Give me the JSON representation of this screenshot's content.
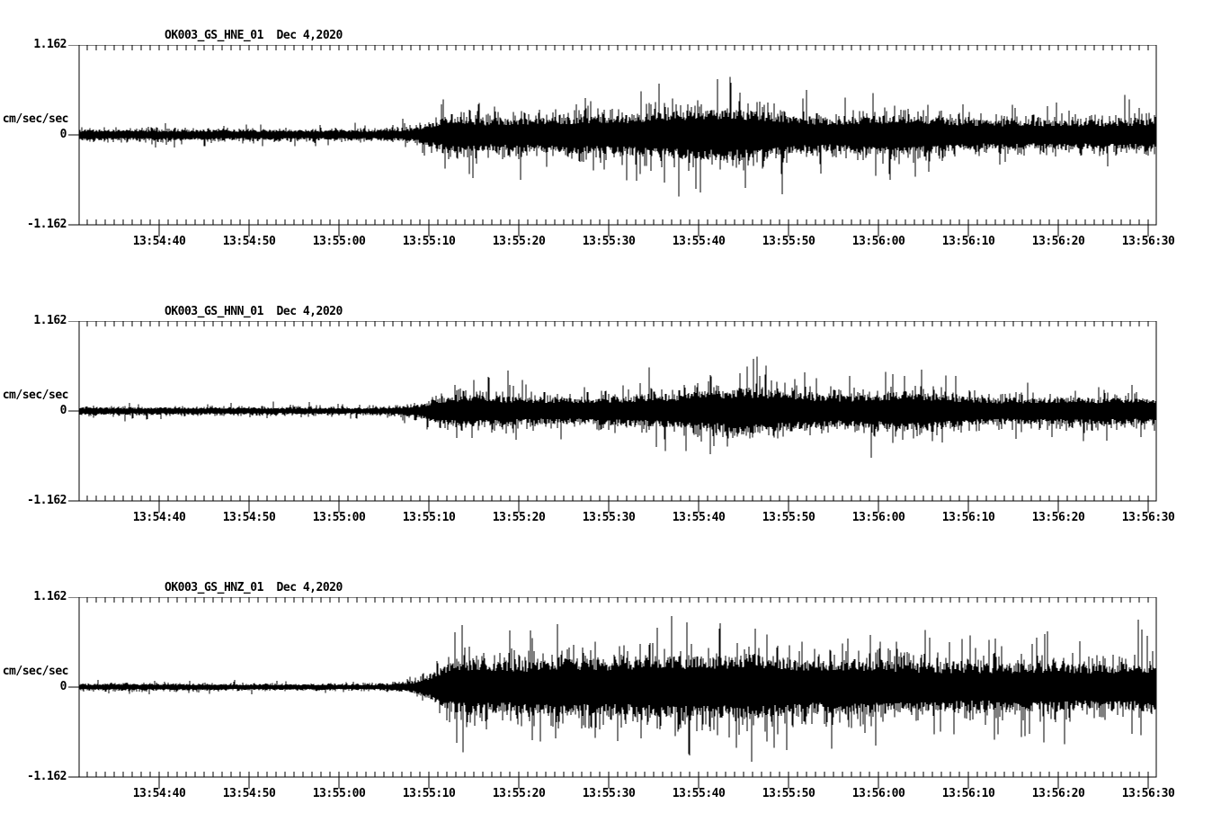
{
  "figure": {
    "background": "#ffffff",
    "trace_color": "#000000",
    "axis_color": "#000000"
  },
  "chart_data": {
    "type": "line",
    "subtype": "seismogram",
    "station": "OK003",
    "network": "GS",
    "date_label": "Dec 4,2020",
    "amplitude_units": "cm/sec/sec",
    "y_axis": {
      "label": "cm/sec/sec",
      "tick_labels": [
        "1.162",
        "0",
        "-1.162"
      ],
      "ylim": [
        -1.162,
        1.162
      ]
    },
    "x_axis": {
      "tick_labels": [
        "13:54:40",
        "13:54:50",
        "13:55:00",
        "13:55:10",
        "13:55:20",
        "13:55:30",
        "13:55:40",
        "13:55:50",
        "13:56:00",
        "13:56:10",
        "13:56:20",
        "13:56:30"
      ],
      "major_tick_interval_sec": 10,
      "minor_tick_interval_sec": 1,
      "window_duration_sec": 120,
      "first_major_tick_offset_sec": 8.9
    },
    "panels": [
      {
        "channel_id": "OK003_GS_HNE_01",
        "channel": "HNE",
        "title": "OK003_GS_HNE_01  Dec 4,2020",
        "envelope_cm_s2": [
          [
            0,
            0.1
          ],
          [
            20,
            0.095
          ],
          [
            32,
            0.09
          ],
          [
            36,
            0.11
          ],
          [
            38,
            0.16
          ],
          [
            40,
            0.28
          ],
          [
            42,
            0.34
          ],
          [
            45,
            0.3
          ],
          [
            50,
            0.32
          ],
          [
            55,
            0.34
          ],
          [
            60,
            0.36
          ],
          [
            64,
            0.42
          ],
          [
            68,
            0.46
          ],
          [
            72,
            0.48
          ],
          [
            76,
            0.44
          ],
          [
            80,
            0.34
          ],
          [
            84,
            0.3
          ],
          [
            88,
            0.36
          ],
          [
            92,
            0.38
          ],
          [
            96,
            0.32
          ],
          [
            100,
            0.28
          ],
          [
            105,
            0.27
          ],
          [
            110,
            0.28
          ],
          [
            115,
            0.27
          ],
          [
            120,
            0.3
          ]
        ]
      },
      {
        "channel_id": "OK003_GS_HNN_01",
        "channel": "HNN",
        "title": "OK003_GS_HNN_01  Dec 4,2020",
        "envelope_cm_s2": [
          [
            0,
            0.07
          ],
          [
            20,
            0.065
          ],
          [
            32,
            0.06
          ],
          [
            36,
            0.08
          ],
          [
            38,
            0.13
          ],
          [
            40,
            0.24
          ],
          [
            43,
            0.3
          ],
          [
            47,
            0.27
          ],
          [
            52,
            0.24
          ],
          [
            57,
            0.25
          ],
          [
            62,
            0.28
          ],
          [
            66,
            0.31
          ],
          [
            70,
            0.38
          ],
          [
            74,
            0.44
          ],
          [
            77,
            0.4
          ],
          [
            81,
            0.32
          ],
          [
            85,
            0.29
          ],
          [
            89,
            0.33
          ],
          [
            92,
            0.37
          ],
          [
            95,
            0.32
          ],
          [
            100,
            0.26
          ],
          [
            105,
            0.24
          ],
          [
            110,
            0.26
          ],
          [
            115,
            0.25
          ],
          [
            120,
            0.24
          ]
        ]
      },
      {
        "channel_id": "OK003_GS_HNZ_01",
        "channel": "HNZ",
        "title": "OK003_GS_HNZ_01  Dec 4,2020",
        "envelope_cm_s2": [
          [
            0,
            0.06
          ],
          [
            20,
            0.055
          ],
          [
            30,
            0.05
          ],
          [
            34,
            0.06
          ],
          [
            37,
            0.1
          ],
          [
            39,
            0.22
          ],
          [
            41,
            0.44
          ],
          [
            43,
            0.52
          ],
          [
            46,
            0.48
          ],
          [
            50,
            0.5
          ],
          [
            54,
            0.54
          ],
          [
            58,
            0.52
          ],
          [
            62,
            0.56
          ],
          [
            66,
            0.58
          ],
          [
            70,
            0.56
          ],
          [
            74,
            0.62
          ],
          [
            78,
            0.56
          ],
          [
            82,
            0.5
          ],
          [
            86,
            0.52
          ],
          [
            90,
            0.5
          ],
          [
            94,
            0.46
          ],
          [
            98,
            0.44
          ],
          [
            103,
            0.44
          ],
          [
            108,
            0.46
          ],
          [
            113,
            0.42
          ],
          [
            120,
            0.46
          ]
        ]
      }
    ]
  }
}
